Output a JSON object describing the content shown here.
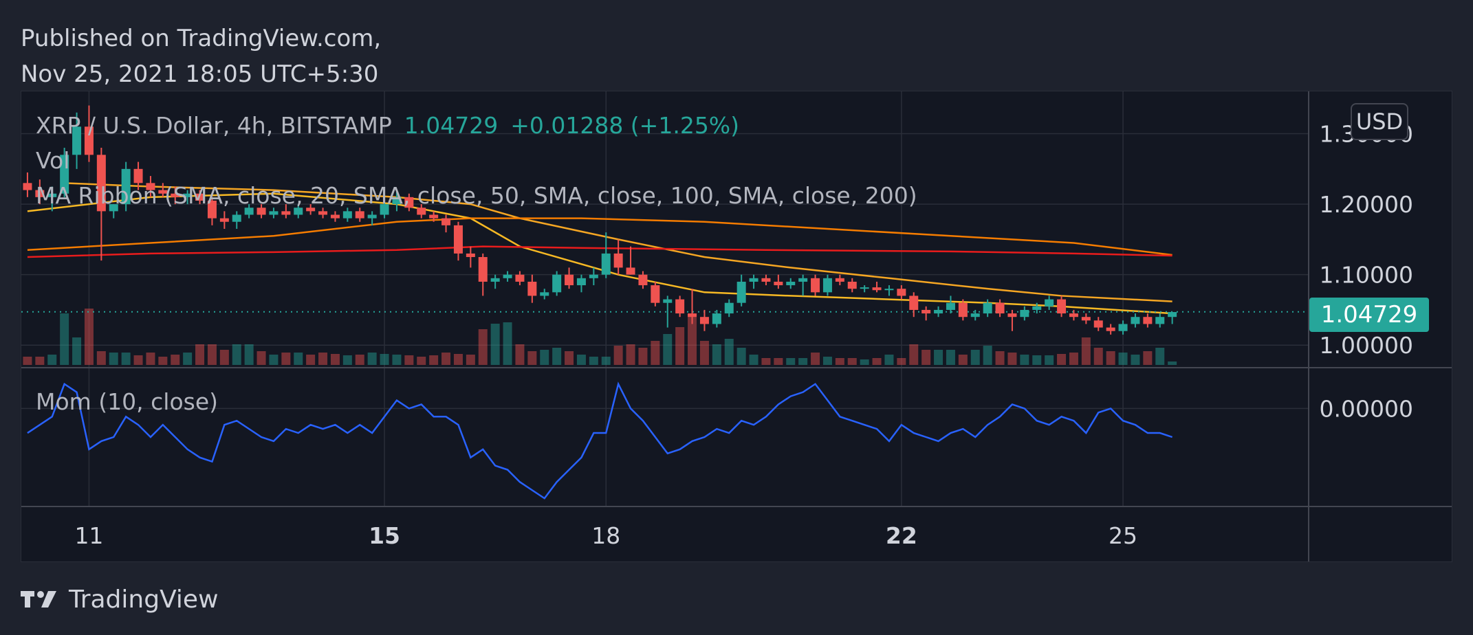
{
  "header": {
    "published_line": "Published on TradingView.com,",
    "date_line": "Nov 25, 2021 18:05 UTC+5:30"
  },
  "legend": {
    "symbol": "XRP / U.S. Dollar, 4h, BITSTAMP",
    "last_price": "1.04729",
    "change": "+0.01288 (+1.25%)",
    "volume_label": "Vol",
    "ma_ribbon": "MA Ribbon (SMA, close, 20, SMA, close, 50, SMA, close, 100, SMA, close, 200)",
    "momentum": "Mom (10, close)"
  },
  "currency_button": "USD",
  "price_badge": "1.04729",
  "brand": {
    "name": "TradingView",
    "icon": "tradingview-logo-icon"
  },
  "colors": {
    "background": "#131722",
    "grid": "#2a2e39",
    "up": "#26a69a",
    "down": "#ef5350",
    "ma20": "#f7b924",
    "ma50": "#f5a623",
    "ma100": "#f57c00",
    "ma200": "#e91c1c",
    "momentum": "#2962ff",
    "last_price_line": "#26a69a"
  },
  "chart_data": {
    "type": "candlestick",
    "symbol": "XRP / U.S. Dollar",
    "interval": "4h",
    "exchange": "BITSTAMP",
    "price_ticks": [
      "1.30000",
      "1.20000",
      "1.10000",
      "1.00000"
    ],
    "price_tick_values": [
      1.3,
      1.2,
      1.1,
      1.0
    ],
    "ylim": [
      0.97,
      1.36
    ],
    "momentum_ticks": [
      "0.00000"
    ],
    "momentum_tick_values": [
      0
    ],
    "momentum_ylim": [
      -0.12,
      0.05
    ],
    "x_ticks": [
      {
        "label": "11",
        "index": 5,
        "bold": false
      },
      {
        "label": "15",
        "index": 29,
        "bold": true
      },
      {
        "label": "18",
        "index": 47,
        "bold": false
      },
      {
        "label": "22",
        "index": 71,
        "bold": true
      },
      {
        "label": "25",
        "index": 89,
        "bold": false
      }
    ],
    "last_price": 1.04729,
    "candles": [
      [
        1.23,
        1.245,
        1.21,
        1.22
      ],
      [
        1.22,
        1.235,
        1.2,
        1.21
      ],
      [
        1.21,
        1.225,
        1.19,
        1.215
      ],
      [
        1.215,
        1.28,
        1.21,
        1.27
      ],
      [
        1.27,
        1.33,
        1.25,
        1.31
      ],
      [
        1.31,
        1.34,
        1.26,
        1.27
      ],
      [
        1.27,
        1.28,
        1.12,
        1.19
      ],
      [
        1.19,
        1.2,
        1.18,
        1.2
      ],
      [
        1.2,
        1.26,
        1.19,
        1.25
      ],
      [
        1.25,
        1.26,
        1.22,
        1.23
      ],
      [
        1.23,
        1.24,
        1.21,
        1.22
      ],
      [
        1.22,
        1.23,
        1.21,
        1.215
      ],
      [
        1.215,
        1.225,
        1.2,
        1.21
      ],
      [
        1.21,
        1.22,
        1.2,
        1.215
      ],
      [
        1.215,
        1.22,
        1.2,
        1.205
      ],
      [
        1.205,
        1.21,
        1.17,
        1.18
      ],
      [
        1.18,
        1.19,
        1.165,
        1.175
      ],
      [
        1.175,
        1.19,
        1.165,
        1.185
      ],
      [
        1.185,
        1.2,
        1.18,
        1.195
      ],
      [
        1.195,
        1.2,
        1.18,
        1.185
      ],
      [
        1.185,
        1.195,
        1.18,
        1.19
      ],
      [
        1.19,
        1.2,
        1.18,
        1.185
      ],
      [
        1.185,
        1.2,
        1.18,
        1.195
      ],
      [
        1.195,
        1.2,
        1.185,
        1.19
      ],
      [
        1.19,
        1.195,
        1.18,
        1.185
      ],
      [
        1.185,
        1.19,
        1.175,
        1.18
      ],
      [
        1.18,
        1.195,
        1.175,
        1.19
      ],
      [
        1.19,
        1.195,
        1.175,
        1.18
      ],
      [
        1.18,
        1.19,
        1.17,
        1.185
      ],
      [
        1.185,
        1.21,
        1.18,
        1.2
      ],
      [
        1.2,
        1.22,
        1.19,
        1.21
      ],
      [
        1.21,
        1.215,
        1.19,
        1.195
      ],
      [
        1.195,
        1.2,
        1.18,
        1.185
      ],
      [
        1.185,
        1.19,
        1.175,
        1.18
      ],
      [
        1.18,
        1.185,
        1.16,
        1.17
      ],
      [
        1.17,
        1.175,
        1.12,
        1.13
      ],
      [
        1.13,
        1.14,
        1.11,
        1.125
      ],
      [
        1.125,
        1.13,
        1.07,
        1.09
      ],
      [
        1.09,
        1.1,
        1.08,
        1.095
      ],
      [
        1.095,
        1.105,
        1.09,
        1.1
      ],
      [
        1.1,
        1.105,
        1.085,
        1.09
      ],
      [
        1.09,
        1.1,
        1.06,
        1.07
      ],
      [
        1.07,
        1.08,
        1.065,
        1.075
      ],
      [
        1.075,
        1.105,
        1.07,
        1.1
      ],
      [
        1.1,
        1.11,
        1.08,
        1.085
      ],
      [
        1.085,
        1.1,
        1.075,
        1.095
      ],
      [
        1.095,
        1.11,
        1.085,
        1.1
      ],
      [
        1.1,
        1.16,
        1.095,
        1.13
      ],
      [
        1.13,
        1.15,
        1.1,
        1.11
      ],
      [
        1.11,
        1.14,
        1.1,
        1.1
      ],
      [
        1.1,
        1.105,
        1.08,
        1.085
      ],
      [
        1.085,
        1.09,
        1.055,
        1.06
      ],
      [
        1.06,
        1.07,
        1.025,
        1.065
      ],
      [
        1.065,
        1.07,
        1.04,
        1.045
      ],
      [
        1.045,
        1.08,
        1.03,
        1.04
      ],
      [
        1.04,
        1.05,
        1.02,
        1.03
      ],
      [
        1.03,
        1.05,
        1.025,
        1.045
      ],
      [
        1.045,
        1.065,
        1.04,
        1.06
      ],
      [
        1.06,
        1.1,
        1.055,
        1.09
      ],
      [
        1.09,
        1.1,
        1.08,
        1.095
      ],
      [
        1.095,
        1.1,
        1.085,
        1.09
      ],
      [
        1.09,
        1.1,
        1.08,
        1.085
      ],
      [
        1.085,
        1.095,
        1.08,
        1.09
      ],
      [
        1.09,
        1.1,
        1.07,
        1.095
      ],
      [
        1.095,
        1.1,
        1.07,
        1.075
      ],
      [
        1.075,
        1.1,
        1.07,
        1.095
      ],
      [
        1.095,
        1.1,
        1.085,
        1.09
      ],
      [
        1.09,
        1.095,
        1.075,
        1.08
      ],
      [
        1.08,
        1.085,
        1.075,
        1.082
      ],
      [
        1.082,
        1.09,
        1.075,
        1.078
      ],
      [
        1.078,
        1.085,
        1.07,
        1.08
      ],
      [
        1.08,
        1.085,
        1.065,
        1.07
      ],
      [
        1.07,
        1.075,
        1.04,
        1.05
      ],
      [
        1.05,
        1.055,
        1.035,
        1.045
      ],
      [
        1.045,
        1.055,
        1.04,
        1.05
      ],
      [
        1.05,
        1.07,
        1.045,
        1.06
      ],
      [
        1.06,
        1.065,
        1.035,
        1.04
      ],
      [
        1.04,
        1.05,
        1.035,
        1.045
      ],
      [
        1.045,
        1.065,
        1.04,
        1.06
      ],
      [
        1.06,
        1.065,
        1.04,
        1.045
      ],
      [
        1.045,
        1.05,
        1.02,
        1.04
      ],
      [
        1.04,
        1.055,
        1.035,
        1.05
      ],
      [
        1.05,
        1.06,
        1.045,
        1.055
      ],
      [
        1.055,
        1.07,
        1.05,
        1.065
      ],
      [
        1.065,
        1.07,
        1.04,
        1.045
      ],
      [
        1.045,
        1.05,
        1.035,
        1.04
      ],
      [
        1.04,
        1.045,
        1.03,
        1.035
      ],
      [
        1.035,
        1.04,
        1.02,
        1.025
      ],
      [
        1.025,
        1.03,
        1.015,
        1.02
      ],
      [
        1.02,
        1.035,
        1.015,
        1.03
      ],
      [
        1.03,
        1.045,
        1.025,
        1.04
      ],
      [
        1.04,
        1.045,
        1.025,
        1.03
      ],
      [
        1.03,
        1.045,
        1.025,
        1.04
      ],
      [
        1.04,
        1.045,
        1.03,
        1.047
      ]
    ],
    "volume_relative": [
      0.12,
      0.12,
      0.15,
      0.75,
      0.4,
      0.82,
      0.2,
      0.18,
      0.18,
      0.14,
      0.18,
      0.12,
      0.15,
      0.18,
      0.3,
      0.3,
      0.22,
      0.3,
      0.3,
      0.2,
      0.15,
      0.18,
      0.18,
      0.15,
      0.18,
      0.16,
      0.14,
      0.15,
      0.18,
      0.16,
      0.15,
      0.14,
      0.12,
      0.14,
      0.18,
      0.16,
      0.15,
      0.52,
      0.6,
      0.62,
      0.3,
      0.2,
      0.22,
      0.25,
      0.2,
      0.15,
      0.12,
      0.12,
      0.28,
      0.3,
      0.25,
      0.35,
      0.45,
      0.55,
      0.7,
      0.35,
      0.3,
      0.38,
      0.25,
      0.15,
      0.1,
      0.1,
      0.1,
      0.1,
      0.18,
      0.12,
      0.1,
      0.1,
      0.08,
      0.1,
      0.15,
      0.1,
      0.3,
      0.22,
      0.22,
      0.22,
      0.15,
      0.22,
      0.28,
      0.2,
      0.18,
      0.15,
      0.14,
      0.14,
      0.16,
      0.18,
      0.4,
      0.25,
      0.2,
      0.18,
      0.15,
      0.2,
      0.25,
      0.05
    ],
    "momentum": [
      -0.03,
      -0.02,
      -0.01,
      0.03,
      0.02,
      -0.05,
      -0.04,
      -0.035,
      -0.01,
      -0.02,
      -0.035,
      -0.02,
      -0.035,
      -0.05,
      -0.06,
      -0.065,
      -0.02,
      -0.015,
      -0.025,
      -0.035,
      -0.04,
      -0.025,
      -0.03,
      -0.02,
      -0.025,
      -0.02,
      -0.03,
      -0.02,
      -0.03,
      -0.01,
      0.01,
      0.0,
      0.005,
      -0.01,
      -0.01,
      -0.02,
      -0.06,
      -0.05,
      -0.07,
      -0.075,
      -0.09,
      -0.1,
      -0.11,
      -0.09,
      -0.075,
      -0.06,
      -0.03,
      -0.03,
      0.03,
      0.0,
      -0.015,
      -0.035,
      -0.055,
      -0.05,
      -0.04,
      -0.035,
      -0.025,
      -0.03,
      -0.015,
      -0.02,
      -0.01,
      0.005,
      0.015,
      0.02,
      0.03,
      0.01,
      -0.01,
      -0.015,
      -0.02,
      -0.025,
      -0.04,
      -0.02,
      -0.03,
      -0.035,
      -0.04,
      -0.03,
      -0.025,
      -0.035,
      -0.02,
      -0.01,
      0.005,
      0.0,
      -0.015,
      -0.02,
      -0.01,
      -0.015,
      -0.03,
      -0.005,
      0.0,
      -0.015,
      -0.02,
      -0.03,
      -0.03,
      -0.035
    ],
    "ma_ribbon": [
      {
        "period": 20,
        "x": [
          0,
          10,
          20,
          30,
          36,
          40,
          48,
          55,
          62,
          70,
          78,
          84,
          93
        ],
        "values": [
          1.19,
          1.21,
          1.215,
          1.2,
          1.18,
          1.14,
          1.1,
          1.075,
          1.07,
          1.065,
          1.06,
          1.055,
          1.045
        ]
      },
      {
        "period": 50,
        "x": [
          3,
          10,
          20,
          30,
          36,
          40,
          48,
          55,
          62,
          70,
          78,
          84,
          93
        ],
        "values": [
          1.23,
          1.225,
          1.22,
          1.21,
          1.2,
          1.18,
          1.15,
          1.125,
          1.11,
          1.095,
          1.08,
          1.07,
          1.062
        ]
      },
      {
        "period": 100,
        "x": [
          0,
          10,
          20,
          30,
          36,
          45,
          55,
          65,
          75,
          85,
          93
        ],
        "values": [
          1.135,
          1.145,
          1.155,
          1.175,
          1.18,
          1.18,
          1.175,
          1.165,
          1.155,
          1.145,
          1.128
        ]
      },
      {
        "period": 200,
        "x": [
          0,
          10,
          20,
          30,
          37,
          45,
          60,
          75,
          85,
          93
        ],
        "values": [
          1.125,
          1.13,
          1.132,
          1.135,
          1.14,
          1.138,
          1.135,
          1.133,
          1.13,
          1.127
        ]
      }
    ]
  }
}
